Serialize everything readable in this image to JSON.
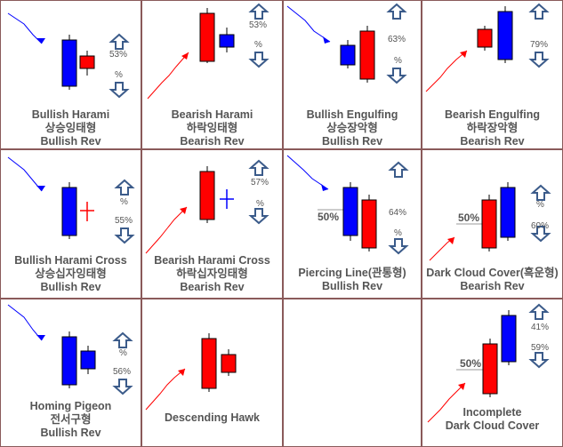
{
  "cells": [
    {
      "lines": [
        "Bullish Harami",
        "상승잉태형",
        "Bullish Rev"
      ],
      "pct_up": "53%",
      "pct_down": "%"
    },
    {
      "lines": [
        "Bearish Harami",
        "하락잉태형",
        "Bearish Rev"
      ],
      "pct_up": "53%",
      "pct_down": "%"
    },
    {
      "lines": [
        "Bullish Engulfing",
        "상승장악형",
        "Bullish Rev"
      ],
      "pct_up": "63%",
      "pct_down": "%"
    },
    {
      "lines": [
        "Bearish Engulfing",
        "하락장악형",
        "Bearish Rev"
      ],
      "pct_up": "79%",
      "pct_down": "%"
    },
    {
      "lines": [
        "Bullish Harami Cross",
        "상승십자잉태형",
        "Bullish Rev"
      ],
      "pct_up": "%",
      "pct_down": "55%"
    },
    {
      "lines": [
        "Bearish Harami Cross",
        "하락십자잉태형",
        "Bearish Rev"
      ],
      "pct_up": "57%",
      "pct_down": "%"
    },
    {
      "lines": [
        "Piercing Line(관통형)",
        "Bullish Rev"
      ],
      "pct_up": "64%",
      "pct_down": "%",
      "mid": "50%"
    },
    {
      "lines": [
        "Dark Cloud Cover(흑운형)",
        "Bearish Rev"
      ],
      "pct_up": "%",
      "pct_down": "60%",
      "mid": "50%"
    },
    {
      "lines": [
        "Homing Pigeon",
        "전서구형",
        "Bullish Rev"
      ],
      "pct_up": "%",
      "pct_down": "56%"
    },
    {
      "lines": [
        "Descending Hawk"
      ]
    },
    {
      "lines": []
    },
    {
      "lines": [
        "Incomplete",
        "Dark Cloud Cover"
      ],
      "pct_up": "41%",
      "pct_down": "59%",
      "mid": "50%"
    }
  ],
  "colors": {
    "red": "#ff0000",
    "blue": "#0000ff",
    "arrow": "#3b5b8a",
    "border": "#8a5a5a"
  }
}
